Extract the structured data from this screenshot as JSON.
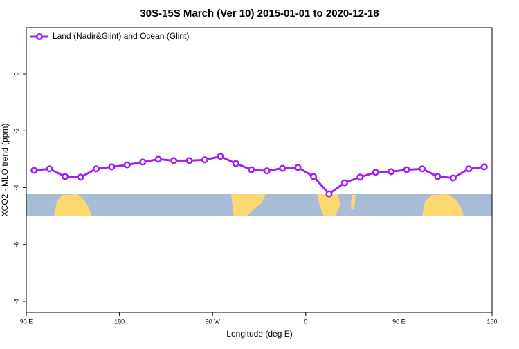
{
  "chart_data": {
    "type": "line",
    "title": "30S-15S March (Ver 10)   2015-01-01 to 2020-12-18",
    "x_label": "Longitude (deg E)",
    "y_label": "XCO2 - MLO trend (ppm)",
    "x": [
      97.5,
      112.5,
      127.5,
      142.5,
      157.5,
      172.5,
      187.5,
      202.5,
      217.5,
      232.5,
      247.5,
      262.5,
      277.5,
      292.5,
      307.5,
      322.5,
      337.5,
      352.5,
      367.5,
      382.5,
      397.5,
      412.5,
      427.5,
      442.5,
      457.5,
      472.5,
      487.5,
      502.5,
      517.5,
      532.5
    ],
    "series": [
      {
        "name": "Land (Nadir&Glint) and Ocean (Glint)",
        "color": "#a020f0",
        "values": [
          -3.39,
          -3.34,
          -3.61,
          -3.63,
          -3.34,
          -3.27,
          -3.2,
          -3.1,
          -3.0,
          -3.05,
          -3.05,
          -3.02,
          -2.9,
          -3.15,
          -3.37,
          -3.41,
          -3.32,
          -3.29,
          -3.61,
          -4.22,
          -3.83,
          -3.63,
          -3.46,
          -3.44,
          -3.37,
          -3.34,
          -3.61,
          -3.66,
          -3.34,
          -3.27
        ]
      }
    ],
    "xlim": [
      90,
      540
    ],
    "xticks": [
      {
        "value": 90,
        "label": "90 E"
      },
      180,
      {
        "value": 270,
        "label": "90 W"
      },
      {
        "value": 360,
        "label": "0"
      },
      {
        "value": 450,
        "label": "90 E"
      },
      {
        "value": 540,
        "label": "180"
      }
    ],
    "ylim": [
      -8.39,
      1.63
    ],
    "yticks": [
      0,
      -2,
      -4,
      -6,
      -8
    ],
    "legend": "top-left"
  }
}
